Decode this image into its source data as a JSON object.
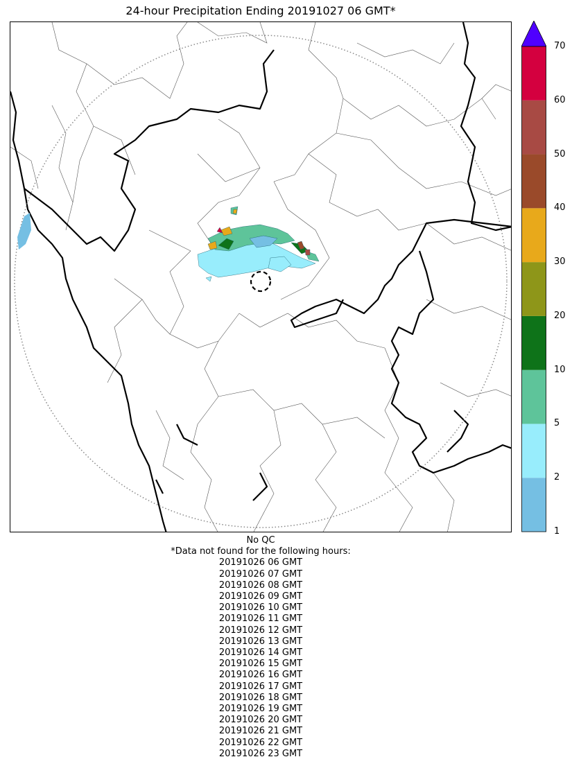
{
  "title": "24-hour Precipitation Ending 20191027 06 GMT*",
  "map": {
    "outer_range_ring": "dotted",
    "inner_ring": "dashed",
    "background": "#ffffff",
    "boundary_colors": {
      "state": "#000000",
      "district": "#555555",
      "ring": "#888888"
    }
  },
  "colorbar": {
    "levels": [
      1,
      2,
      5,
      10,
      20,
      30,
      40,
      50,
      60,
      70
    ],
    "colors": [
      "#75bfe3",
      "#98edfc",
      "#5ec49a",
      "#0e7319",
      "#8e9619",
      "#e8a91b",
      "#9a4a2a",
      "#a84a44",
      "#d4003f"
    ],
    "extend_color": "#4f00ff",
    "tick_labels": [
      "1",
      "2",
      "5",
      "10",
      "20",
      "30",
      "40",
      "50",
      "60",
      "70"
    ]
  },
  "notes": {
    "qc": "No QC",
    "missing_header": "*Data not found for the following hours:",
    "missing_hours": [
      "20191026 06 GMT",
      "20191026 07 GMT",
      "20191026 08 GMT",
      "20191026 09 GMT",
      "20191026 10 GMT",
      "20191026 11 GMT",
      "20191026 12 GMT",
      "20191026 13 GMT",
      "20191026 14 GMT",
      "20191026 15 GMT",
      "20191026 16 GMT",
      "20191026 17 GMT",
      "20191026 18 GMT",
      "20191026 19 GMT",
      "20191026 20 GMT",
      "20191026 21 GMT",
      "20191026 22 GMT",
      "20191026 23 GMT"
    ]
  }
}
